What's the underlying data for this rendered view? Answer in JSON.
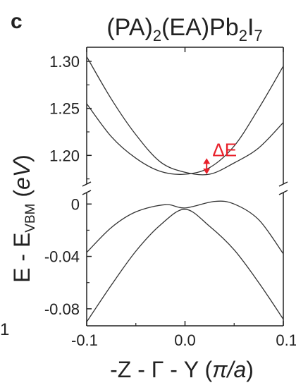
{
  "panel_label": "c",
  "stray_label": "1",
  "chart_data": {
    "type": "line",
    "title": {
      "parts": [
        "(PA)",
        "2",
        "(EA)Pb",
        "2",
        "I",
        "7"
      ],
      "text": "(PA)2(EA)Pb2I7"
    },
    "xlabel": {
      "main": "-Z - Γ - Y (",
      "italic": "π/a",
      "close": ")",
      "text": "-Z - Γ - Y (π/a)"
    },
    "ylabel": {
      "main": "E - E",
      "sub": "VBM",
      "open": " (",
      "italic": "eV",
      "close": ")",
      "text": "E - E_VBM (eV)"
    },
    "xlim": [
      -0.1,
      0.1
    ],
    "x_ticks": [
      "-0.1",
      "0.0",
      "0.1"
    ],
    "x_tick_values": [
      -0.1,
      0.0,
      0.1
    ],
    "broken_axis": true,
    "upper_panel": {
      "ylim": [
        1.165,
        1.315
      ],
      "y_ticks": [
        "1.30",
        "1.25",
        "1.20"
      ],
      "y_tick_values": [
        1.3,
        1.25,
        1.2
      ],
      "series": [
        {
          "x": [
            -0.1,
            -0.075,
            -0.05,
            -0.025,
            0.0,
            0.025,
            0.05,
            0.075,
            0.1
          ],
          "y": [
            1.305,
            1.26,
            1.222,
            1.193,
            1.182,
            1.18,
            1.192,
            1.208,
            1.235
          ]
        },
        {
          "x": [
            -0.1,
            -0.075,
            -0.05,
            -0.025,
            0.0,
            0.025,
            0.05,
            0.075,
            0.1
          ],
          "y": [
            1.255,
            1.22,
            1.197,
            1.183,
            1.18,
            1.187,
            1.21,
            1.25,
            1.295
          ]
        }
      ]
    },
    "lower_panel": {
      "ylim": [
        -0.093,
        0.012
      ],
      "y_ticks": [
        "0",
        "-0.04",
        "-0.08"
      ],
      "y_tick_values": [
        0.0,
        -0.04,
        -0.08
      ],
      "series": [
        {
          "x": [
            -0.1,
            -0.075,
            -0.05,
            -0.02,
            0.0,
            0.03,
            0.05,
            0.075,
            0.1
          ],
          "y": [
            -0.037,
            -0.018,
            -0.006,
            -0.0005,
            -0.003,
            0.002,
            0.0,
            -0.012,
            -0.038
          ]
        },
        {
          "x": [
            -0.1,
            -0.075,
            -0.05,
            -0.025,
            0.0,
            0.025,
            0.05,
            0.075,
            0.1
          ],
          "y": [
            -0.09,
            -0.062,
            -0.036,
            -0.016,
            -0.004,
            -0.017,
            -0.035,
            -0.06,
            -0.088
          ]
        }
      ]
    },
    "annotation": {
      "text": "ΔE",
      "color": "#e8202a",
      "arrow_x": 0.022,
      "arrow_y": [
        1.18,
        1.197
      ],
      "text_x": 0.025,
      "text_y": 1.199
    }
  }
}
